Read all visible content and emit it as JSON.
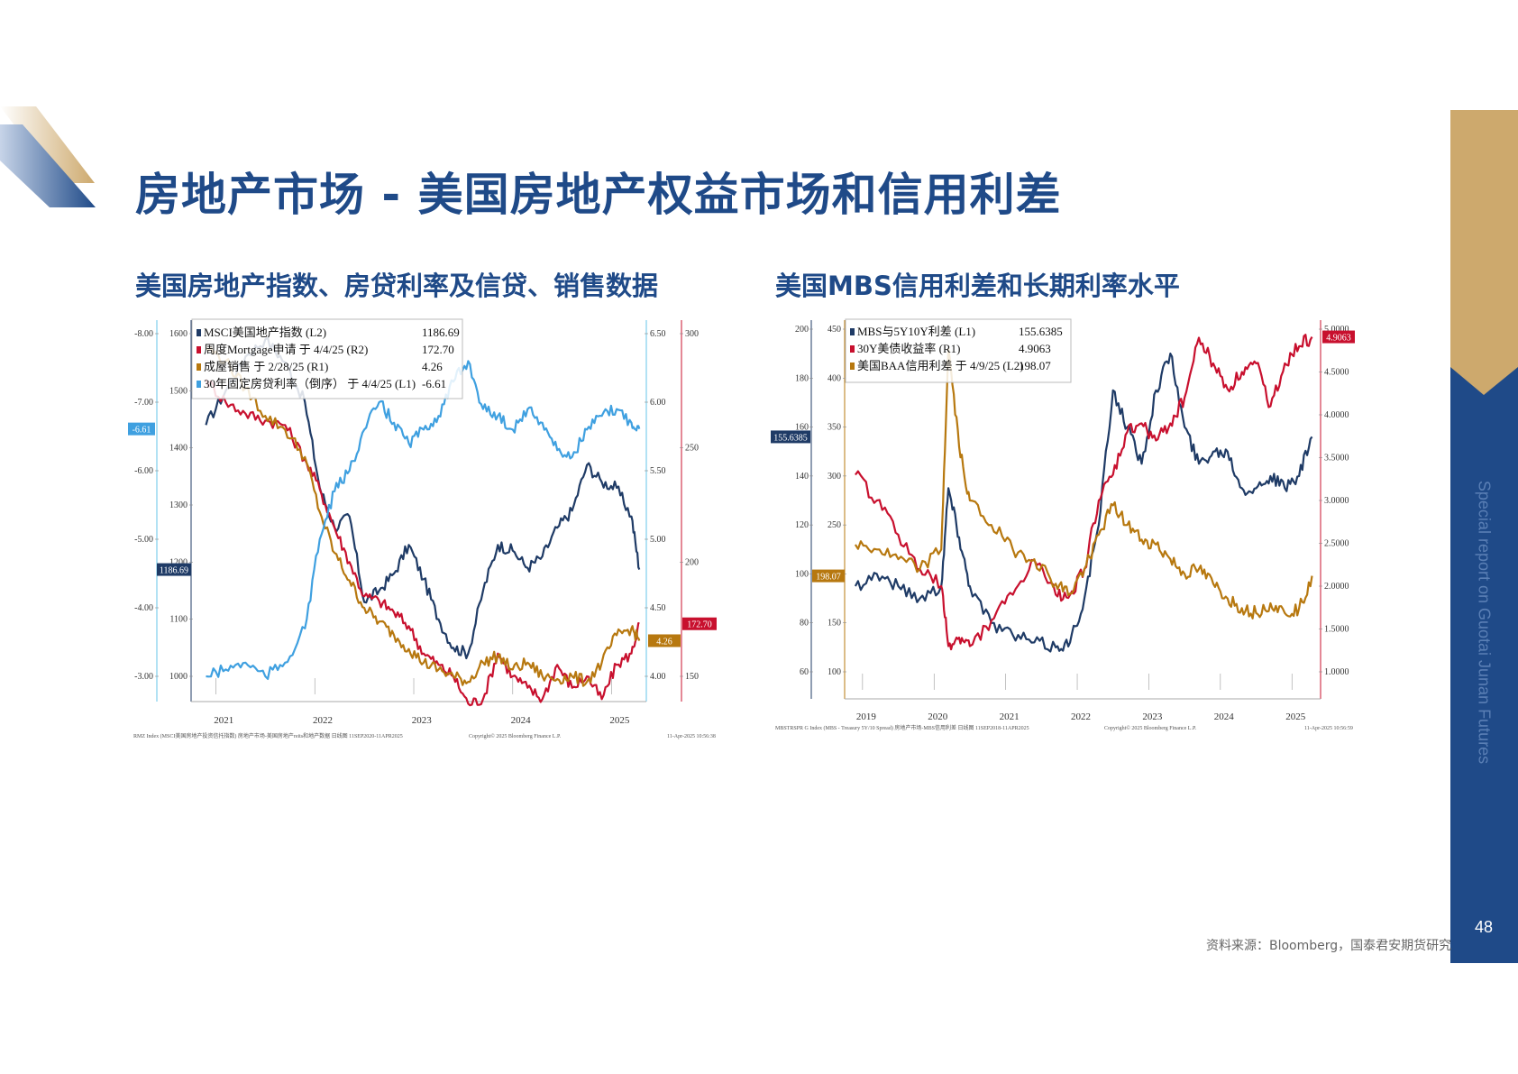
{
  "header": {
    "title": "房地产市场 - 美国房地产权益市场和信用利差"
  },
  "sidebar": {
    "vertical_text": "Special report on Guotai Junan Futures",
    "page_number": "48"
  },
  "footer": {
    "source": "资料来源：Bloomberg，国泰君安期货研究"
  },
  "colors": {
    "navy": "#1f3b66",
    "red": "#c8102e",
    "gold": "#b7780f",
    "lightblue": "#3fa0e0",
    "title_blue": "#1f4a88",
    "sidebar_gold": "#cda96d"
  },
  "chart_data": [
    {
      "type": "line",
      "subtitle": "美国房地产指数、房贷利率及信贷、销售数据",
      "footer_left": "RMZ Index (MSCI美国房地产投资信托指数) 房地产市场-美国房地产reits和地产数据  日线图 11SEP2020-11APR2025",
      "footer_center": "Copyright© 2025 Bloomberg Finance L.P.",
      "footer_right": "11-Apr-2025 10:56:38",
      "x_labels": [
        "2021",
        "2022",
        "2023",
        "2024",
        "2025"
      ],
      "axis_L1": {
        "ticks": [
          "-3.00",
          "-4.00",
          "-5.00",
          "-6.00",
          "-7.00",
          "-8.00"
        ],
        "ylim": [
          -3.0,
          -8.0
        ]
      },
      "axis_L2": {
        "ticks": [
          "1600",
          "1500",
          "1400",
          "1300",
          "1200",
          "1100",
          "1000"
        ],
        "ylim": [
          1000,
          1600
        ]
      },
      "axis_R1": {
        "ticks": [
          "6.50",
          "6.00",
          "5.50",
          "5.00",
          "4.50",
          "4.00"
        ],
        "ylim": [
          4.0,
          6.5
        ]
      },
      "axis_R2": {
        "ticks": [
          "300",
          "250",
          "200",
          "150"
        ],
        "ylim": [
          150,
          300
        ]
      },
      "series": [
        {
          "name": "MSCI美国地产指数 (L2)",
          "last": "1186.69",
          "axis": "L2",
          "color": "#1f3b66",
          "x": [
            2020.9,
            2021.1,
            2021.3,
            2021.5,
            2021.7,
            2021.9,
            2022.05,
            2022.2,
            2022.35,
            2022.5,
            2022.65,
            2022.8,
            2022.95,
            2023.1,
            2023.25,
            2023.4,
            2023.55,
            2023.7,
            2023.85,
            2024.0,
            2024.15,
            2024.3,
            2024.45,
            2024.6,
            2024.75,
            2024.9,
            2025.05,
            2025.2,
            2025.28
          ],
          "values": [
            1440,
            1500,
            1560,
            1590,
            1550,
            1480,
            1330,
            1260,
            1280,
            1130,
            1150,
            1180,
            1230,
            1170,
            1100,
            1050,
            1040,
            1150,
            1230,
            1220,
            1190,
            1210,
            1260,
            1290,
            1370,
            1340,
            1330,
            1280,
            1187
          ]
        },
        {
          "name": "周度Mortgage申请 于 4/4/25 (R2)",
          "last": "172.70",
          "axis": "R2",
          "color": "#c8102e",
          "x": [
            2020.9,
            2021.1,
            2021.3,
            2021.5,
            2021.7,
            2021.9,
            2022.05,
            2022.2,
            2022.35,
            2022.5,
            2022.65,
            2022.8,
            2022.95,
            2023.1,
            2023.25,
            2023.4,
            2023.55,
            2023.7,
            2023.85,
            2024.0,
            2024.15,
            2024.3,
            2024.45,
            2024.6,
            2024.75,
            2024.9,
            2025.05,
            2025.2,
            2025.28
          ],
          "values": [
            280,
            270,
            265,
            262,
            260,
            245,
            232,
            215,
            200,
            185,
            183,
            178,
            172,
            160,
            155,
            150,
            138,
            140,
            160,
            150,
            145,
            140,
            155,
            145,
            150,
            140,
            155,
            160,
            173
          ]
        },
        {
          "name": "成屋销售 于 2/28/25 (R1)",
          "last": "4.26",
          "axis": "R1",
          "color": "#b7780f",
          "x": [
            2020.9,
            2021.1,
            2021.3,
            2021.5,
            2021.7,
            2021.9,
            2022.05,
            2022.2,
            2022.35,
            2022.5,
            2022.65,
            2022.8,
            2022.95,
            2023.1,
            2023.25,
            2023.4,
            2023.55,
            2023.7,
            2023.85,
            2024.0,
            2024.15,
            2024.3,
            2024.45,
            2024.6,
            2024.75,
            2024.9,
            2025.05,
            2025.2,
            2025.28
          ],
          "values": [
            6.4,
            6.3,
            6.1,
            5.9,
            5.8,
            5.6,
            5.2,
            4.9,
            4.7,
            4.5,
            4.4,
            4.3,
            4.2,
            4.1,
            4.05,
            4.0,
            3.96,
            4.1,
            4.15,
            4.05,
            4.1,
            4.0,
            3.98,
            4.0,
            3.96,
            4.1,
            4.3,
            4.35,
            4.26
          ]
        },
        {
          "name": "30年固定房贷利率（倒序） 于 4/4/25 (L1)",
          "last": "-6.61",
          "axis": "L1",
          "color": "#3fa0e0",
          "x": [
            2020.9,
            2021.1,
            2021.3,
            2021.5,
            2021.7,
            2021.9,
            2022.05,
            2022.2,
            2022.35,
            2022.5,
            2022.65,
            2022.8,
            2022.95,
            2023.1,
            2023.25,
            2023.4,
            2023.55,
            2023.7,
            2023.85,
            2024.0,
            2024.15,
            2024.3,
            2024.45,
            2024.6,
            2024.75,
            2024.9,
            2025.05,
            2025.2,
            2025.28
          ],
          "values": [
            -3.0,
            -3.1,
            -3.2,
            -3.0,
            -3.2,
            -3.7,
            -5.0,
            -5.7,
            -6.0,
            -6.6,
            -7.0,
            -6.7,
            -6.4,
            -6.6,
            -6.8,
            -7.3,
            -7.6,
            -6.9,
            -6.8,
            -6.6,
            -6.9,
            -6.7,
            -6.3,
            -6.2,
            -6.6,
            -6.8,
            -6.9,
            -6.7,
            -6.61
          ]
        }
      ]
    },
    {
      "type": "line",
      "subtitle": "美国MBS信用利差和长期利率水平",
      "footer_left": "MBSTRSPR G Index (MBS - Treasury 5Y/10 Spread) 房地产市场-MBS信用利差  日线图 11SEP2018-11APR2025",
      "footer_center": "Copyright© 2025 Bloomberg Finance L.P.",
      "footer_right": "11-Apr-2025 10:56:59",
      "x_labels": [
        "2019",
        "2020",
        "2021",
        "2022",
        "2023",
        "2024",
        "2025"
      ],
      "axis_L1": {
        "ticks": [
          "200",
          "180",
          "160",
          "140",
          "120",
          "100",
          "80",
          "60"
        ],
        "ylim": [
          60,
          200
        ]
      },
      "axis_L2": {
        "ticks": [
          "450",
          "400",
          "350",
          "300",
          "250",
          "200",
          "150",
          "100"
        ],
        "ylim": [
          100,
          450
        ]
      },
      "axis_R1": {
        "ticks": [
          "5.0000",
          "4.5000",
          "4.0000",
          "3.5000",
          "3.0000",
          "2.5000",
          "2.0000",
          "1.5000",
          "1.0000"
        ],
        "ylim": [
          1.0,
          5.0
        ]
      },
      "series": [
        {
          "name": "MBS与5Y10Y利差 (L1)",
          "last": "155.6385",
          "axis": "L1",
          "color": "#1f3b66",
          "x": [
            2018.9,
            2019.2,
            2019.5,
            2019.8,
            2020.1,
            2020.2,
            2020.35,
            2020.5,
            2020.8,
            2021.1,
            2021.4,
            2021.7,
            2021.9,
            2022.1,
            2022.3,
            2022.5,
            2022.7,
            2022.9,
            2023.1,
            2023.3,
            2023.5,
            2023.7,
            2023.9,
            2024.1,
            2024.3,
            2024.5,
            2024.7,
            2024.9,
            2025.1,
            2025.28
          ],
          "values": [
            95,
            100,
            95,
            90,
            95,
            135,
            115,
            95,
            80,
            75,
            72,
            70,
            72,
            90,
            120,
            175,
            160,
            145,
            175,
            190,
            160,
            145,
            150,
            150,
            135,
            135,
            140,
            135,
            140,
            156
          ]
        },
        {
          "name": "30Y美债收益率 (R1)",
          "last": "4.9063",
          "axis": "R1",
          "color": "#c8102e",
          "x": [
            2018.9,
            2019.2,
            2019.5,
            2019.8,
            2020.1,
            2020.2,
            2020.35,
            2020.5,
            2020.8,
            2021.1,
            2021.4,
            2021.7,
            2021.9,
            2022.1,
            2022.3,
            2022.5,
            2022.7,
            2022.9,
            2023.1,
            2023.3,
            2023.5,
            2023.7,
            2023.9,
            2024.1,
            2024.3,
            2024.5,
            2024.7,
            2024.9,
            2025.1,
            2025.28
          ],
          "values": [
            3.3,
            3.0,
            2.6,
            2.2,
            2.0,
            1.3,
            1.4,
            1.3,
            1.6,
            1.9,
            2.3,
            1.9,
            1.9,
            2.2,
            3.0,
            3.3,
            3.8,
            3.9,
            3.7,
            3.9,
            4.2,
            4.9,
            4.6,
            4.3,
            4.5,
            4.6,
            4.1,
            4.6,
            4.8,
            4.91
          ]
        },
        {
          "name": "美国BAA信用利差 于 4/9/25 (L2)",
          "last": "198.07",
          "axis": "L2",
          "color": "#b7780f",
          "x": [
            2018.9,
            2019.2,
            2019.5,
            2019.8,
            2020.1,
            2020.2,
            2020.35,
            2020.5,
            2020.8,
            2021.1,
            2021.4,
            2021.7,
            2021.9,
            2022.1,
            2022.3,
            2022.5,
            2022.7,
            2022.9,
            2023.1,
            2023.3,
            2023.5,
            2023.7,
            2023.9,
            2024.1,
            2024.3,
            2024.5,
            2024.7,
            2024.9,
            2025.1,
            2025.28
          ],
          "values": [
            230,
            225,
            215,
            205,
            225,
            430,
            330,
            275,
            250,
            225,
            215,
            190,
            180,
            205,
            240,
            270,
            250,
            235,
            230,
            215,
            200,
            205,
            190,
            175,
            165,
            160,
            170,
            160,
            165,
            198
          ]
        }
      ]
    }
  ]
}
